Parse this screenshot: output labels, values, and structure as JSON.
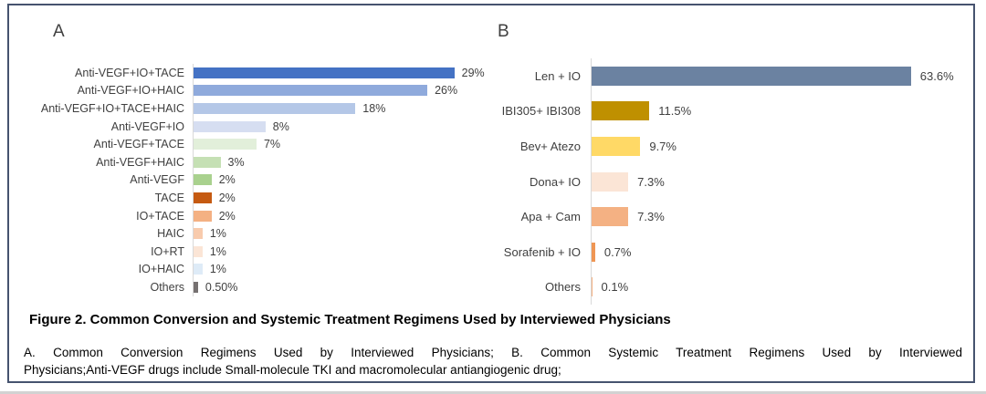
{
  "caption": {
    "title": "Figure 2. Common Conversion and Systemic Treatment Regimens Used by Interviewed Physicians",
    "note_line1": "A. Common Conversion Regimens Used by Interviewed Physicians; B. Common Systemic Treatment Regimens Used by Interviewed",
    "note_line2": "Physicians;Anti-VEGF drugs include Small-molecule TKI and macromolecular antiangiogenic drug;"
  },
  "colors": {
    "frame_border": "#46536F",
    "axis_line": "#D9D9D9",
    "label_text": "#3F3F3F",
    "page_edge": "#D2D2D2"
  },
  "chart_data": [
    {
      "type": "bar",
      "orientation": "horizontal",
      "panel_letter": "A",
      "title": "Common Conversion Regimens Used by Interviewed Physicians",
      "categories": [
        "Anti-VEGF+IO+TACE",
        "Anti-VEGF+IO+HAIC",
        "Anti-VEGF+IO+TACE+HAIC",
        "Anti-VEGF+IO",
        "Anti-VEGF+TACE",
        "Anti-VEGF+HAIC",
        "Anti-VEGF",
        "TACE",
        "IO+TACE",
        "HAIC",
        "IO+RT",
        "IO+HAIC",
        "Others"
      ],
      "values": [
        29,
        26,
        18,
        8,
        7,
        3,
        2,
        2,
        2,
        1,
        1,
        1,
        0.5
      ],
      "value_labels": [
        "29%",
        "26%",
        "18%",
        "8%",
        "7%",
        "3%",
        "2%",
        "2%",
        "2%",
        "1%",
        "1%",
        "1%",
        "0.50%"
      ],
      "bar_colors": [
        "#4472C4",
        "#8FAADC",
        "#B4C7E7",
        "#D6DEF1",
        "#E2EFDA",
        "#C5E0B4",
        "#A9D18E",
        "#C55A11",
        "#F4B183",
        "#F8CBAD",
        "#FBE5D6",
        "#DEEBF7",
        "#767171"
      ],
      "xlim": [
        0,
        30
      ],
      "grid": false,
      "legend": false,
      "value_unit": "%"
    },
    {
      "type": "bar",
      "orientation": "horizontal",
      "panel_letter": "B",
      "title": "Common Systemic Treatment Regimens Used by Interviewed Physicians",
      "categories": [
        "Len + IO",
        "IBI305+ IBI308",
        "Bev+ Atezo",
        "Dona+ IO",
        "Apa + Cam",
        "Sorafenib + IO",
        "Others"
      ],
      "values": [
        63.6,
        11.5,
        9.7,
        7.3,
        7.3,
        0.7,
        0.1
      ],
      "value_labels": [
        "63.6%",
        "11.5%",
        "9.7%",
        "7.3%",
        "7.3%",
        "0.7%",
        "0.1%"
      ],
      "bar_colors": [
        "#6B82A1",
        "#BF9000",
        "#FFD966",
        "#FBE5D6",
        "#F4B183",
        "#EF9654",
        "#F4B183"
      ],
      "xlim": [
        0,
        70
      ],
      "grid": false,
      "legend": false,
      "value_unit": "%"
    }
  ]
}
